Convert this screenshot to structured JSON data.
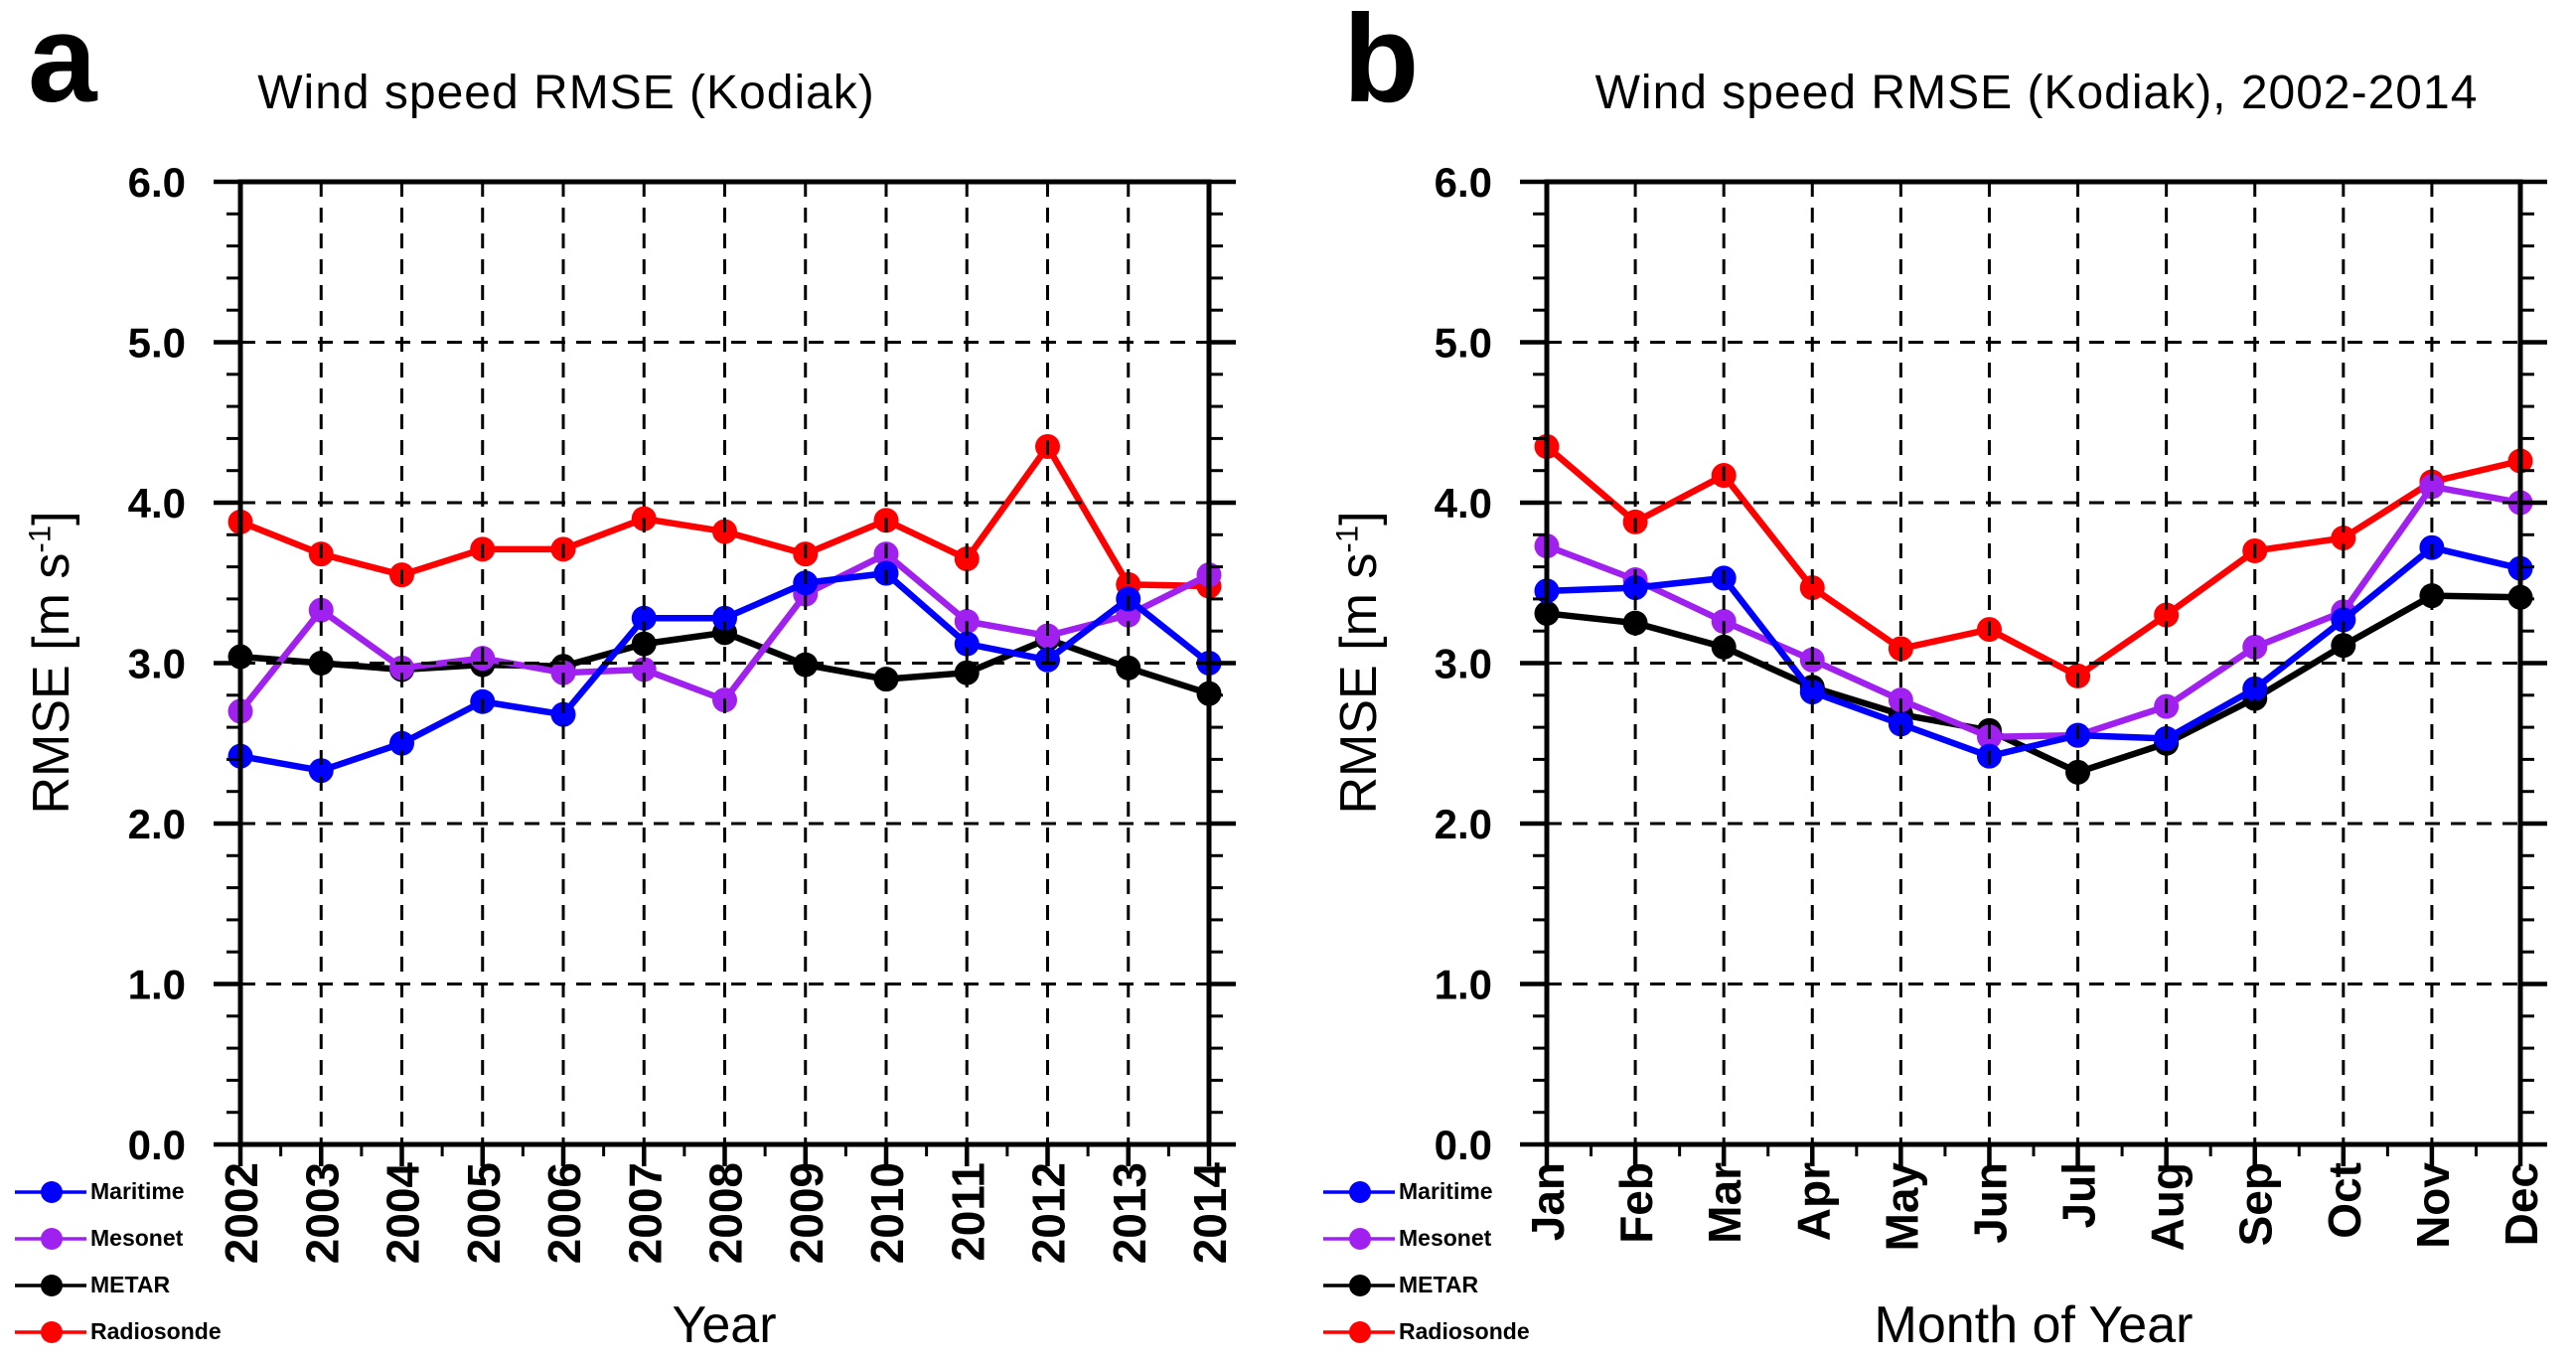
{
  "figure": {
    "background": "#ffffff",
    "text_color": "#000000"
  },
  "chart_data": [
    {
      "type": "line",
      "panel_letter": "a",
      "title": "Wind speed RMSE (Kodiak)",
      "xlabel": "Year",
      "ylabel": "RMSE [m s^-1]",
      "ylabel_parts": {
        "pre": "RMSE [m s",
        "sup": "-1",
        "post": "]"
      },
      "categories": [
        "2002",
        "2003",
        "2004",
        "2005",
        "2006",
        "2007",
        "2008",
        "2009",
        "2010",
        "2011",
        "2012",
        "2013",
        "2014"
      ],
      "ylim": [
        0.0,
        6.0
      ],
      "ytick_step": 1.0,
      "ytick_minor_step": 0.2,
      "ytick_labels": [
        "0.0",
        "1.0",
        "2.0",
        "3.0",
        "4.0",
        "5.0",
        "6.0"
      ],
      "grid": "dashed at major ticks, on",
      "legend_position": "bottom-left-outside",
      "series": [
        {
          "name": "Maritime",
          "color": "#0000ff",
          "values": [
            2.42,
            2.33,
            2.5,
            2.76,
            2.68,
            3.28,
            3.28,
            3.5,
            3.56,
            3.12,
            3.02,
            3.4,
            3.0
          ]
        },
        {
          "name": "Mesonet",
          "color": "#a020f0",
          "values": [
            2.7,
            3.33,
            2.97,
            3.03,
            2.94,
            2.96,
            2.77,
            3.43,
            3.68,
            3.26,
            3.17,
            3.3,
            3.55
          ]
        },
        {
          "name": "METAR",
          "color": "#000000",
          "values": [
            3.04,
            3.0,
            2.96,
            2.99,
            2.98,
            3.12,
            3.19,
            2.99,
            2.9,
            2.94,
            3.15,
            2.97,
            2.81
          ]
        },
        {
          "name": "Radiosonde",
          "color": "#ff0000",
          "values": [
            3.88,
            3.68,
            3.55,
            3.71,
            3.71,
            3.9,
            3.82,
            3.68,
            3.89,
            3.65,
            4.35,
            3.49,
            3.48
          ]
        }
      ]
    },
    {
      "type": "line",
      "panel_letter": "b",
      "title": "Wind speed RMSE (Kodiak), 2002-2014",
      "xlabel": "Month of Year",
      "ylabel": "RMSE [m s^-1]",
      "ylabel_parts": {
        "pre": "RMSE [m s",
        "sup": "-1",
        "post": "]"
      },
      "categories": [
        "Jan",
        "Feb",
        "Mar",
        "Apr",
        "May",
        "Jun",
        "Jul",
        "Aug",
        "Sep",
        "Oct",
        "Nov",
        "Dec"
      ],
      "ylim": [
        0.0,
        6.0
      ],
      "ytick_step": 1.0,
      "ytick_minor_step": 0.2,
      "ytick_labels": [
        "0.0",
        "1.0",
        "2.0",
        "3.0",
        "4.0",
        "5.0",
        "6.0"
      ],
      "grid": "dashed at major ticks, on",
      "legend_position": "bottom-left-outside",
      "series": [
        {
          "name": "Maritime",
          "color": "#0000ff",
          "values": [
            3.45,
            3.47,
            3.53,
            2.82,
            2.62,
            2.42,
            2.55,
            2.53,
            2.84,
            3.27,
            3.72,
            3.59
          ]
        },
        {
          "name": "Mesonet",
          "color": "#a020f0",
          "values": [
            3.73,
            3.52,
            3.26,
            3.02,
            2.77,
            2.54,
            2.55,
            2.73,
            3.1,
            3.32,
            4.1,
            4.0
          ]
        },
        {
          "name": "METAR",
          "color": "#000000",
          "values": [
            3.31,
            3.25,
            3.1,
            2.85,
            2.68,
            2.58,
            2.32,
            2.5,
            2.78,
            3.11,
            3.42,
            3.41
          ]
        },
        {
          "name": "Radiosonde",
          "color": "#ff0000",
          "values": [
            4.35,
            3.88,
            4.17,
            3.47,
            3.09,
            3.21,
            2.92,
            3.3,
            3.7,
            3.78,
            4.13,
            4.26
          ]
        }
      ]
    }
  ]
}
